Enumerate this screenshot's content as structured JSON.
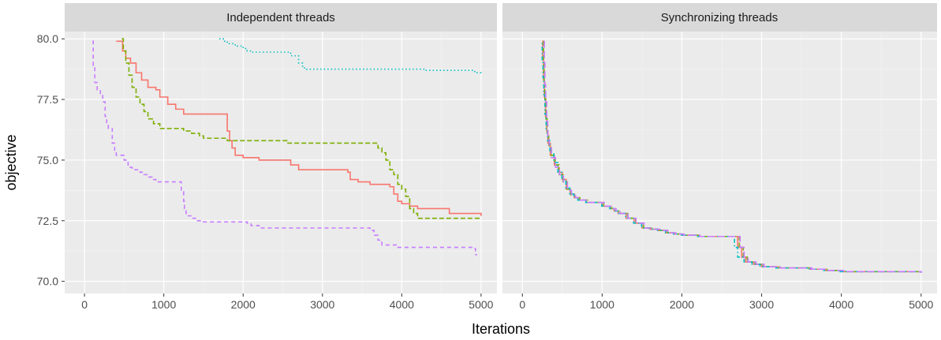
{
  "chart_data": {
    "type": "line",
    "xlabel": "Iterations",
    "ylabel": "objective",
    "xlim": [
      -250,
      5200
    ],
    "ylim": [
      69.5,
      80.3
    ],
    "x_ticks": [
      0,
      1000,
      2000,
      3000,
      4000,
      5000
    ],
    "y_ticks": [
      70.0,
      72.5,
      75.0,
      77.5,
      80.0
    ],
    "x_tick_labels": [
      "0",
      "1000",
      "2000",
      "3000",
      "4000",
      "5000"
    ],
    "y_tick_labels": [
      "70.0",
      "72.5",
      "75.0",
      "77.5",
      "80.0"
    ],
    "grid": true,
    "panels": [
      {
        "title": "Independent threads",
        "series": [
          {
            "color": "#F8766D",
            "dash": "solid",
            "x": [
              400,
              480,
              520,
              580,
              650,
              720,
              800,
              900,
              950,
              1050,
              1150,
              1250,
              1750,
              1800,
              1830,
              1860,
              1900,
              2000,
              2100,
              2200,
              2500,
              2600,
              2700,
              3300,
              3320,
              3350,
              3450,
              3600,
              3800,
              3850,
              3900,
              3950,
              4000,
              4100,
              4200,
              4550,
              4600,
              5000
            ],
            "y": [
              79.9,
              79.5,
              79.2,
              79.0,
              78.6,
              78.3,
              78.0,
              77.9,
              77.6,
              77.3,
              77.1,
              76.9,
              76.9,
              76.2,
              75.8,
              75.5,
              75.2,
              75.1,
              75.1,
              75.0,
              75.0,
              74.8,
              74.6,
              74.6,
              74.5,
              74.2,
              74.1,
              74.0,
              74.0,
              73.9,
              73.6,
              73.3,
              73.2,
              73.1,
              73.0,
              73.0,
              72.8,
              72.7
            ]
          },
          {
            "color": "#7CAE00",
            "dash": "long",
            "x": [
              470,
              490,
              520,
              560,
              600,
              650,
              700,
              750,
              800,
              870,
              950,
              1250,
              1350,
              1450,
              1500,
              1750,
              1800,
              2500,
              2550,
              3600,
              3700,
              3750,
              3800,
              3850,
              3900,
              3950,
              4000,
              4050,
              4100,
              4150,
              4200,
              5000
            ],
            "y": [
              80.0,
              79.5,
              79.0,
              78.5,
              78.0,
              77.6,
              77.3,
              77.0,
              76.7,
              76.5,
              76.3,
              76.2,
              76.1,
              76.0,
              75.9,
              75.9,
              75.8,
              75.8,
              75.7,
              75.7,
              75.5,
              75.3,
              75.0,
              74.6,
              74.4,
              74.0,
              73.8,
              73.5,
              73.0,
              72.8,
              72.6,
              72.6
            ]
          },
          {
            "color": "#00BFC4",
            "dash": "dotted",
            "x": [
              1700,
              1750,
              1800,
              1900,
              2000,
              2050,
              2100,
              2300,
              2600,
              2700,
              2750,
              2800,
              3700,
              4000,
              4300,
              4700,
              4800,
              4900,
              4950,
              5000
            ],
            "y": [
              80.0,
              79.9,
              79.8,
              79.7,
              79.6,
              79.5,
              79.45,
              79.45,
              79.3,
              79.0,
              78.8,
              78.75,
              78.75,
              78.75,
              78.7,
              78.7,
              78.7,
              78.65,
              78.6,
              78.5
            ]
          },
          {
            "color": "#C77CFF",
            "dash": "dashed",
            "x": [
              100,
              110,
              130,
              160,
              200,
              230,
              260,
              280,
              300,
              350,
              380,
              400,
              450,
              500,
              550,
              600,
              700,
              750,
              800,
              850,
              900,
              950,
              1000,
              1200,
              1220,
              1250,
              1260,
              1280,
              1300,
              1350,
              1400,
              1450,
              1500,
              1550,
              1600,
              2000,
              2050,
              2100,
              2200,
              2300,
              2500,
              3300,
              3600,
              3650,
              3700,
              3750,
              3950,
              4200,
              4800,
              4900,
              4930,
              4950
            ],
            "y": [
              79.9,
              78.9,
              78.2,
              77.9,
              77.7,
              77.4,
              76.8,
              76.5,
              76.3,
              75.7,
              75.3,
              75.2,
              75.2,
              75.0,
              74.7,
              74.6,
              74.5,
              74.4,
              74.3,
              74.2,
              74.1,
              74.1,
              74.1,
              74.1,
              73.7,
              73.3,
              73.0,
              72.8,
              72.7,
              72.6,
              72.5,
              72.5,
              72.45,
              72.45,
              72.45,
              72.45,
              72.4,
              72.3,
              72.2,
              72.2,
              72.2,
              72.2,
              72.1,
              71.9,
              71.7,
              71.5,
              71.4,
              71.4,
              71.4,
              71.35,
              71.1,
              71.1
            ]
          }
        ]
      },
      {
        "title": "Synchronizing threads",
        "series": [
          {
            "color": "#F8766D",
            "dash": "solid",
            "x": [
              250,
              255,
              265,
              275,
              290,
              305,
              320,
              350,
              400,
              450,
              500,
              550,
              600,
              650,
              700,
              800,
              1000,
              1100,
              1150,
              1200,
              1300,
              1400,
              1500,
              1600,
              1700,
              1800,
              1900,
              2000,
              2200,
              2400,
              2690,
              2700,
              2750,
              2800,
              2900,
              3000,
              3200,
              3400,
              3600,
              3800,
              4000,
              5000
            ],
            "y": [
              79.9,
              79.2,
              78.3,
              77.6,
              76.8,
              76.2,
              75.7,
              75.2,
              74.8,
              74.5,
              74.2,
              73.8,
              73.6,
              73.45,
              73.35,
              73.25,
              73.1,
              73.0,
              72.9,
              72.8,
              72.6,
              72.4,
              72.2,
              72.15,
              72.1,
              72.0,
              71.95,
              71.9,
              71.85,
              71.85,
              71.85,
              71.4,
              71.0,
              70.8,
              70.7,
              70.6,
              70.55,
              70.55,
              70.5,
              70.45,
              70.4,
              70.35
            ]
          },
          {
            "color": "#7CAE00",
            "dash": "long",
            "x": [
              260,
              265,
              272,
              282,
              295,
              310,
              330,
              360,
              410,
              460,
              510,
              560,
              610,
              660,
              720,
              820,
              1020,
              1120,
              1170,
              1220,
              1320,
              1420,
              1520,
              1620,
              1720,
              1820,
              1920,
              2020,
              2220,
              2420,
              2710,
              2720,
              2770,
              2820,
              2920,
              3020,
              3220,
              3420,
              3620,
              3820,
              4020,
              5000
            ],
            "y": [
              79.9,
              79.1,
              78.2,
              77.5,
              76.7,
              76.1,
              75.6,
              75.2,
              74.8,
              74.4,
              74.1,
              73.8,
              73.55,
              73.45,
              73.35,
              73.25,
              73.1,
              73.0,
              72.9,
              72.8,
              72.6,
              72.4,
              72.2,
              72.15,
              72.1,
              72.0,
              71.95,
              71.9,
              71.85,
              71.85,
              71.85,
              71.4,
              71.0,
              70.8,
              70.7,
              70.6,
              70.55,
              70.55,
              70.5,
              70.45,
              70.4,
              70.35
            ]
          },
          {
            "color": "#00BFC4",
            "dash": "dotdash",
            "x": [
              240,
              248,
              258,
              268,
              282,
              298,
              315,
              345,
              395,
              445,
              495,
              545,
              595,
              645,
              695,
              795,
              995,
              1095,
              1145,
              1195,
              1295,
              1395,
              1495,
              1595,
              1695,
              1795,
              1895,
              1995,
              2195,
              2395,
              2650,
              2660,
              2700,
              2780,
              2880,
              2980,
              3180,
              3380,
              3580,
              3780,
              3980,
              5000
            ],
            "y": [
              79.8,
              79.1,
              78.4,
              77.7,
              76.9,
              76.3,
              75.8,
              75.3,
              74.9,
              74.5,
              74.2,
              73.85,
              73.6,
              73.45,
              73.35,
              73.25,
              73.1,
              73.0,
              72.9,
              72.8,
              72.6,
              72.4,
              72.2,
              72.15,
              72.1,
              72.0,
              71.95,
              71.9,
              71.85,
              71.85,
              71.85,
              71.4,
              71.0,
              70.8,
              70.7,
              70.6,
              70.55,
              70.55,
              70.5,
              70.45,
              70.4,
              70.35
            ]
          },
          {
            "color": "#C77CFF",
            "dash": "longdash",
            "x": [
              270,
              275,
              282,
              292,
              305,
              318,
              335,
              365,
              415,
              465,
              515,
              565,
              615,
              665,
              725,
              825,
              1025,
              1125,
              1175,
              1225,
              1325,
              1425,
              1525,
              1625,
              1725,
              1825,
              1925,
              2025,
              2225,
              2425,
              2720,
              2730,
              2780,
              2830,
              2930,
              3030,
              3230,
              3430,
              3630,
              3830,
              4030,
              5000
            ],
            "y": [
              79.9,
              79.0,
              78.1,
              77.4,
              76.6,
              76.0,
              75.5,
              75.1,
              74.7,
              74.4,
              74.1,
              73.75,
              73.55,
              73.45,
              73.35,
              73.25,
              73.1,
              73.0,
              72.9,
              72.8,
              72.6,
              72.4,
              72.2,
              72.15,
              72.1,
              72.0,
              71.95,
              71.9,
              71.85,
              71.85,
              71.85,
              71.4,
              71.0,
              70.8,
              70.7,
              70.6,
              70.55,
              70.55,
              70.5,
              70.45,
              70.4,
              70.35
            ]
          }
        ]
      }
    ]
  }
}
